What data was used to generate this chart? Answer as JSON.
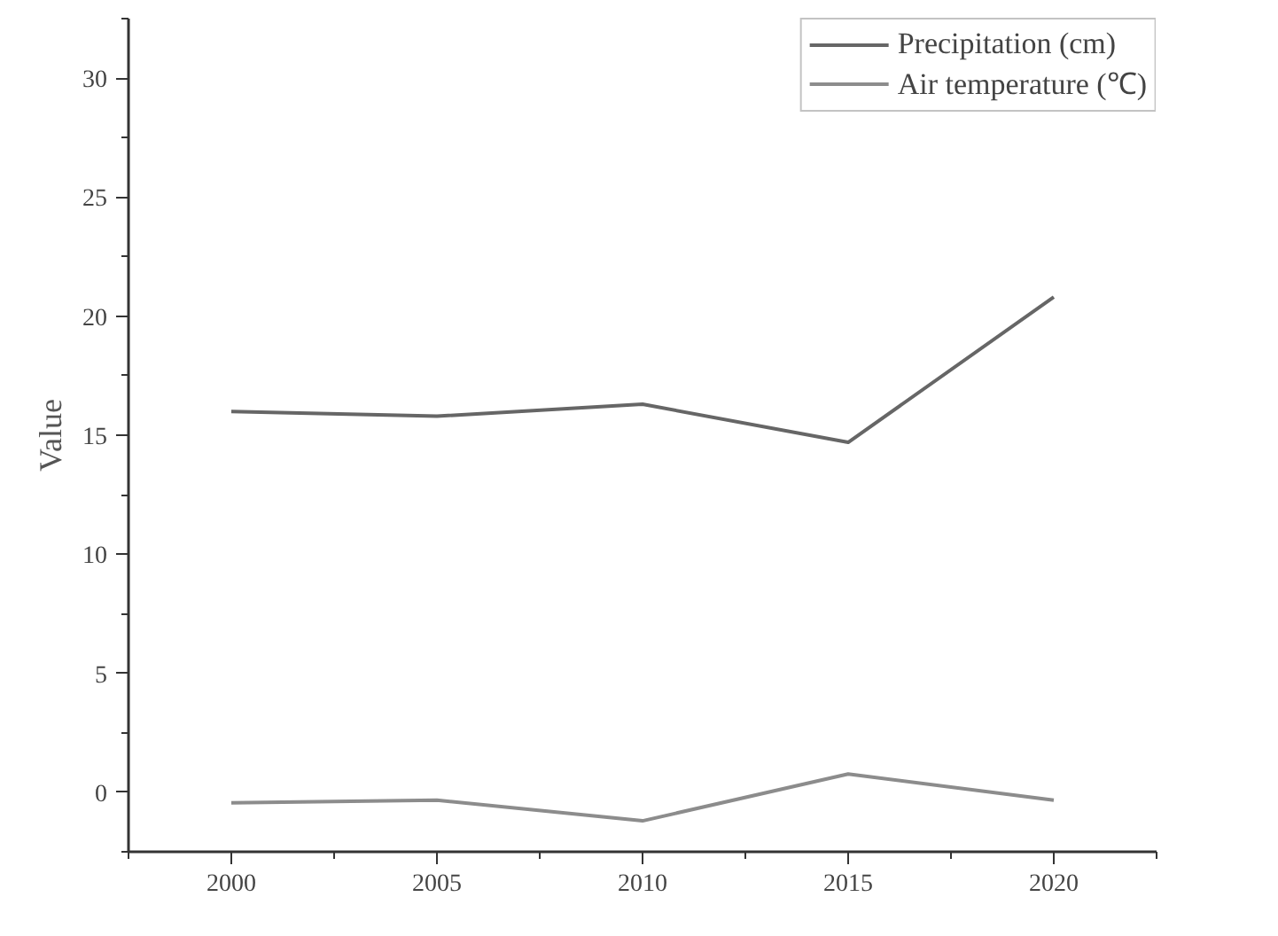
{
  "chart_data": {
    "type": "line",
    "ylabel": "Value",
    "x": [
      2000,
      2005,
      2010,
      2015,
      2020
    ],
    "series": [
      {
        "name": "Precipitation (cm)",
        "color": "#666666",
        "values": [
          16.0,
          15.8,
          16.3,
          14.7,
          20.8
        ]
      },
      {
        "name": "Air temperature (℃)",
        "color": "#8c8c8c",
        "values": [
          -0.44,
          -0.33,
          -1.2,
          0.77,
          -0.33
        ]
      }
    ],
    "xlim": [
      1997.5,
      2022.5
    ],
    "xticks": [
      2000,
      2005,
      2010,
      2015,
      2020
    ],
    "ylim": [
      -2.5,
      32.5
    ],
    "yticks": [
      0,
      5,
      10,
      15,
      20,
      25,
      30
    ],
    "grid": false,
    "legend": "top right",
    "marker": "none",
    "line_style": "solid"
  }
}
